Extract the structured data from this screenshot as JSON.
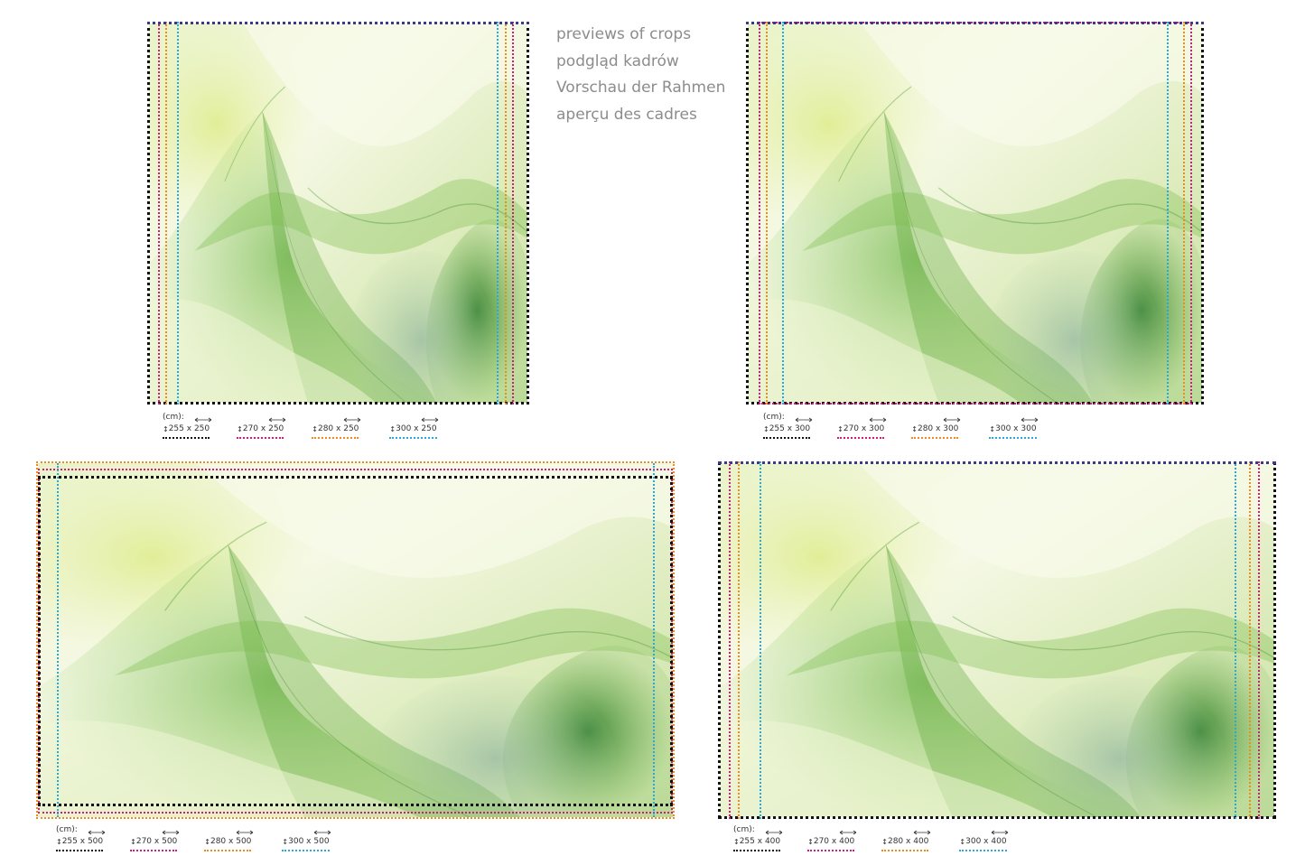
{
  "captions": [
    "previews of crops",
    "podgląd kadrów",
    "Vorschau der Rahmen",
    "aperçu des cadres"
  ],
  "unit_label": "(cm):",
  "colors": {
    "c255": "#111111",
    "c270": "#d6177e",
    "c280": "#f08a1d",
    "c300": "#2aa8d8",
    "frame_top": "#3a3a8c"
  },
  "panels": [
    {
      "id": "250",
      "items": [
        {
          "h": "255",
          "w": "250",
          "color": "#111111"
        },
        {
          "h": "270",
          "w": "250",
          "color": "#d6177e"
        },
        {
          "h": "280",
          "w": "250",
          "color": "#f08a1d"
        },
        {
          "h": "300",
          "w": "250",
          "color": "#2aa8d8"
        }
      ]
    },
    {
      "id": "300",
      "items": [
        {
          "h": "255",
          "w": "300",
          "color": "#111111"
        },
        {
          "h": "270",
          "w": "300",
          "color": "#d6177e"
        },
        {
          "h": "280",
          "w": "300",
          "color": "#f08a1d"
        },
        {
          "h": "300",
          "w": "300",
          "color": "#2aa8d8"
        }
      ]
    },
    {
      "id": "500",
      "items": [
        {
          "h": "255",
          "w": "500",
          "color": "#111111"
        },
        {
          "h": "270",
          "w": "500",
          "color": "#d6177e"
        },
        {
          "h": "280",
          "w": "500",
          "color": "#f08a1d"
        },
        {
          "h": "300",
          "w": "500",
          "color": "#2aa8d8"
        }
      ]
    },
    {
      "id": "400",
      "items": [
        {
          "h": "255",
          "w": "400",
          "color": "#111111"
        },
        {
          "h": "270",
          "w": "400",
          "color": "#d6177e"
        },
        {
          "h": "280",
          "w": "400",
          "color": "#f08a1d"
        },
        {
          "h": "300",
          "w": "400",
          "color": "#2aa8d8"
        }
      ]
    }
  ]
}
